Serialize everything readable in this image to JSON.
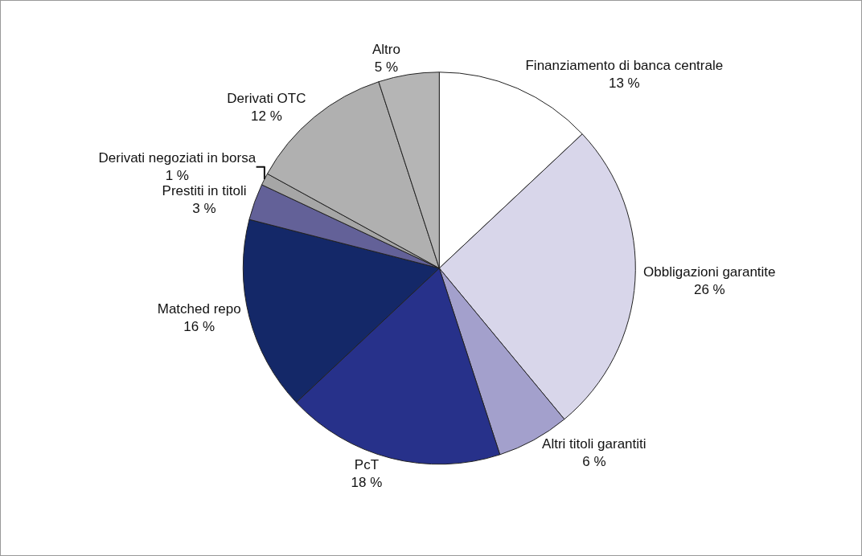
{
  "chart_data": {
    "type": "pie",
    "categories": [
      "Finanziamento di banca centrale",
      "Obbligazioni garantite",
      "Altri titoli garantiti",
      "PcT",
      "Matched repo",
      "Prestiti in titoli",
      "Derivati negoziati in borsa",
      "Derivati OTC",
      "Altro"
    ],
    "values": [
      13,
      26,
      6,
      18,
      16,
      3,
      1,
      12,
      5
    ],
    "value_labels": [
      "13 %",
      "26 %",
      "6 %",
      "18 %",
      "16 %",
      "3 %",
      "1 %",
      "12 %",
      "5 %"
    ],
    "colors": [
      "#ffffff",
      "#d8d6ea",
      "#a3a0cc",
      "#27318a",
      "#142868",
      "#636198",
      "#a6a6a6",
      "#b0b0b0",
      "#b5b5b5"
    ],
    "legend": false
  }
}
